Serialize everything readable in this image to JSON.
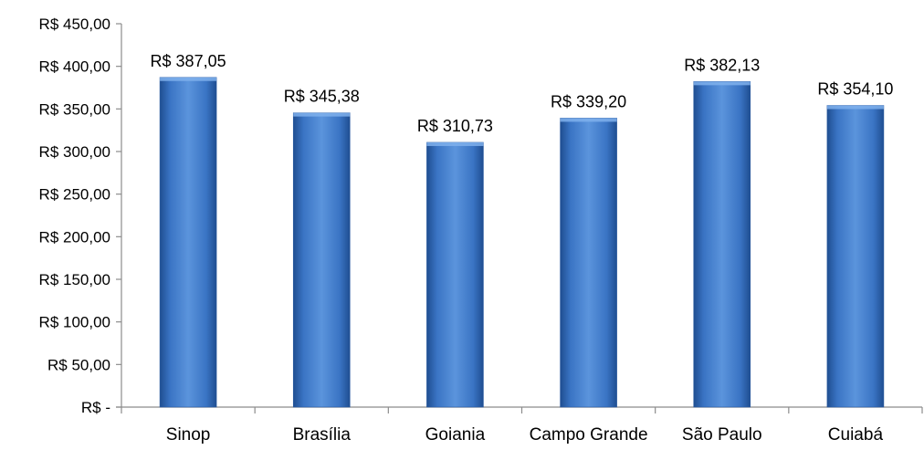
{
  "chart_data": {
    "type": "bar",
    "title": "",
    "xlabel": "",
    "ylabel": "",
    "categories": [
      "Sinop",
      "Brasília",
      "Goiania",
      "Campo Grande",
      "São Paulo",
      "Cuiabá"
    ],
    "values": [
      387.05,
      345.38,
      310.73,
      339.2,
      382.13,
      354.1
    ],
    "data_labels": [
      "R$ 387,05",
      "R$ 345,38",
      "R$ 310,73",
      "R$ 339,20",
      "R$ 382,13",
      "R$ 354,10"
    ],
    "ylim": [
      0,
      450
    ],
    "yticks": [
      0,
      50,
      100,
      150,
      200,
      250,
      300,
      350,
      400,
      450
    ],
    "ytick_labels": [
      "R$ -",
      "R$ 50,00",
      "R$ 100,00",
      "R$ 150,00",
      "R$ 200,00",
      "R$ 250,00",
      "R$ 300,00",
      "R$ 350,00",
      "R$ 400,00",
      "R$ 450,00"
    ],
    "grid": false,
    "legend": "none",
    "colors": {
      "bar_light": "#5b94dc",
      "bar_mid": "#3a74c4",
      "bar_dark": "#1f4e91",
      "axis": "#8c8c8c"
    }
  }
}
